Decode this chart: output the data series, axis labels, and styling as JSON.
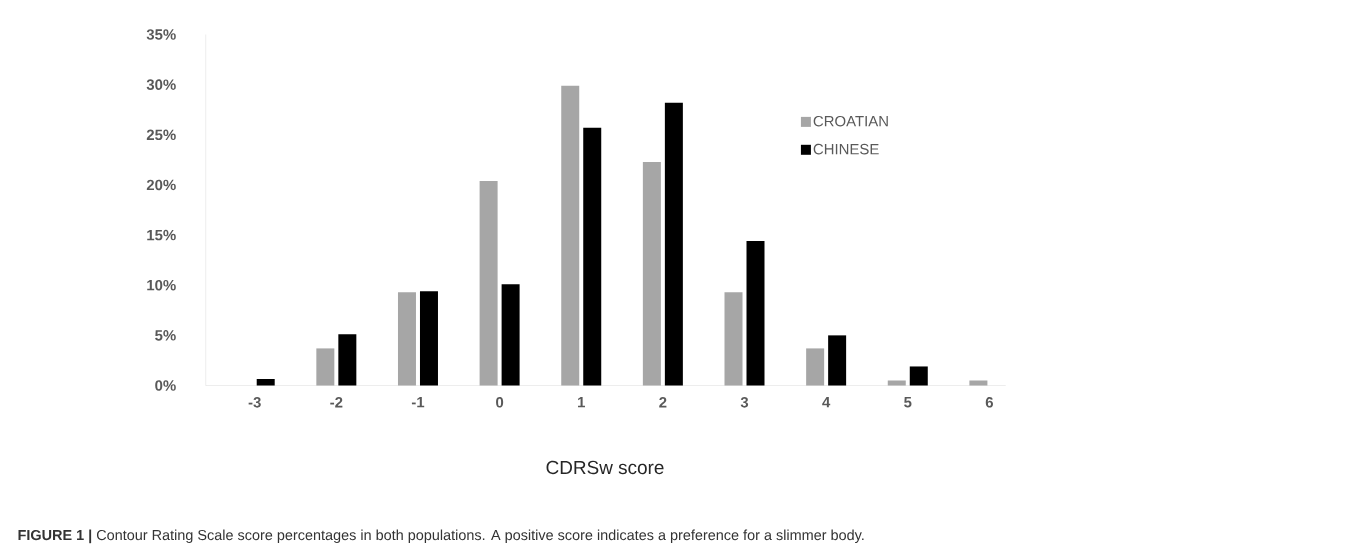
{
  "chart_data": {
    "type": "bar",
    "xlabel": "CDRSw score",
    "categories": [
      "-3",
      "-2",
      "-1",
      "0",
      "1",
      "2",
      "3",
      "4",
      "5",
      "6"
    ],
    "series": [
      {
        "name": "CROATIAN",
        "color": "#a6a6a6",
        "values": [
          0,
          3.7,
          9.3,
          20.4,
          29.9,
          22.3,
          9.3,
          3.7,
          0.5,
          0.5
        ]
      },
      {
        "name": "CHINESE",
        "color": "#000000",
        "values": [
          0.65,
          5.1,
          9.4,
          10.1,
          25.7,
          28.2,
          14.4,
          5.0,
          1.9,
          0
        ]
      }
    ],
    "ylim": [
      0,
      35
    ],
    "yticks": [
      {
        "value": 0,
        "label": "0%"
      },
      {
        "value": 5,
        "label": "5%"
      },
      {
        "value": 10,
        "label": "10%"
      },
      {
        "value": 15,
        "label": "15%"
      },
      {
        "value": 20,
        "label": "20%"
      },
      {
        "value": 25,
        "label": "25%"
      },
      {
        "value": 30,
        "label": "30%"
      },
      {
        "value": 35,
        "label": "35%"
      }
    ],
    "grid": false,
    "legend": "right",
    "annotations": [
      "**FIGURE 1 |** Contour Rating Scale score percentages in both populations. A positive score indicates a preference for a slimmer body."
    ]
  }
}
